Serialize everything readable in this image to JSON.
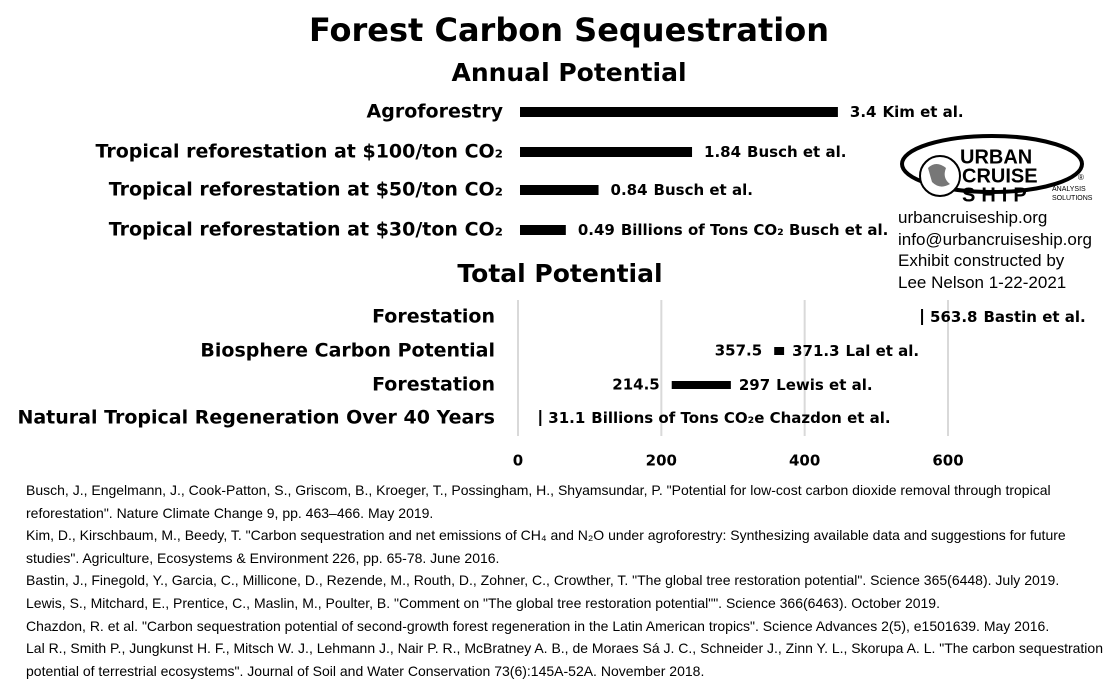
{
  "title": "Forest Carbon Sequestration",
  "chart_data": [
    {
      "type": "hbar",
      "title": "Annual Potential",
      "categories": [
        "Agroforestry",
        "Tropical reforestation at $100/ton CO₂",
        "Tropical reforestation at $50/ton CO₂",
        "Tropical reforestation at $30/ton CO₂"
      ],
      "values": [
        3.4,
        1.84,
        0.84,
        0.49
      ],
      "sources": [
        "Kim et al.",
        "Busch et al.",
        "Busch et al.",
        "Billions of Tons CO₂ Busch et al."
      ],
      "color": "#000000"
    },
    {
      "type": "range",
      "title": "Total Potential",
      "categories": [
        "Forestation",
        "Biosphere Carbon Potential",
        "Forestation",
        "Natural Tropical Regeneration Over 40 Years"
      ],
      "low": [
        null,
        357.5,
        214.5,
        null
      ],
      "high": [
        563.8,
        371.3,
        297,
        31.1
      ],
      "sources": [
        "Bastin et al.",
        "Lal et al.",
        "Lewis et al.",
        "Billions of Tons CO₂e Chazdon et al."
      ],
      "xlim": [
        0,
        600
      ],
      "xticks": [
        0,
        200,
        400,
        600
      ],
      "grid": true,
      "color": "#000000"
    }
  ],
  "logo": {
    "line1": "URBAN",
    "line2": "CRUISE",
    "line3": "SHIP",
    "tag1": "ANALYSIS",
    "tag2": "SOLUTIONS",
    "mark": "®"
  },
  "contact": [
    "urbancruiseship.org",
    "info@urbancruiseship.org",
    "Exhibit constructed by",
    "Lee Nelson 1-22-2021"
  ],
  "references": [
    "Busch, J., Engelmann, J., Cook-Patton, S., Griscom, B., Kroeger, T., Possingham, H., Shyamsundar, P. \"Potential for low-cost carbon dioxide removal through tropical reforestation\". Nature Climate Change 9, pp. 463–466. May 2019.",
    "Kim, D., Kirschbaum, M., Beedy, T. \"Carbon sequestration and net emissions of CH₄ and N₂O under agroforestry: Synthesizing available data and suggestions for future studies\". Agriculture, Ecosystems & Environment 226, pp. 65-78. June 2016.",
    "Bastin, J., Finegold, Y., Garcia, C., Millicone, D., Rezende, M., Routh, D., Zohner, C., Crowther, T. \"The global tree restoration potential\". Science 365(6448). July 2019.",
    "Lewis, S., Mitchard, E., Prentice, C., Maslin, M., Poulter, B. \"Comment on \"The global tree restoration potential\"\". Science 366(6463). October 2019.",
    "Chazdon, R. et al. \"Carbon sequestration potential of second-growth forest regeneration in the Latin American tropics\". Science Advances 2(5), e1501639. May 2016.",
    "Lal R., Smith P., Jungkunst H. F., Mitsch W. J., Lehmann J., Nair P. R., McBratney A. B., de Moraes Sá J. C., Schneider J., Zinn Y. L., Skorupa A. L. \"The carbon sequestration potential of terrestrial ecosystems\". Journal of Soil and Water Conservation 73(6):145A-52A. November 2018."
  ]
}
